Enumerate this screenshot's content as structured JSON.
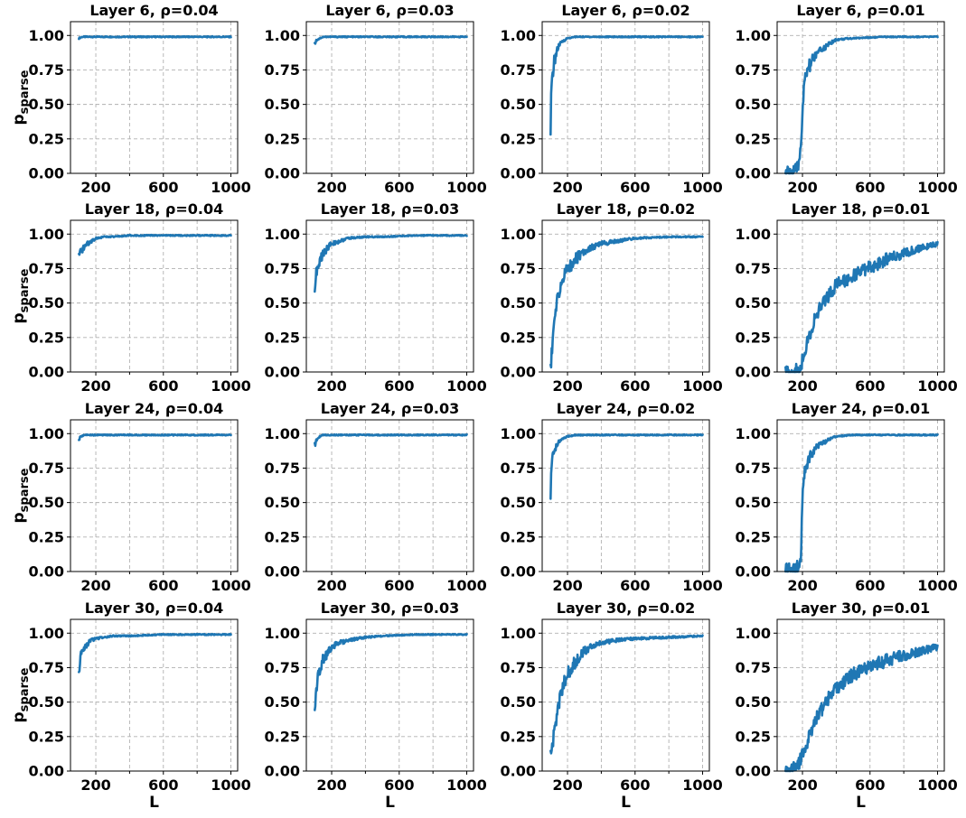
{
  "figure": {
    "x_label": "L",
    "y_label_main": "p",
    "y_label_sub": "sparse"
  },
  "style": {
    "series_color": "#1f77b4",
    "grid": true,
    "grid_style": "dashed",
    "legend": "none"
  },
  "chart_data": [
    {
      "type": "line",
      "title": "Layer 6, ρ=0.04",
      "xlabel": "",
      "ylabel": "p_sparse",
      "xlim": [
        50,
        1040
      ],
      "ylim": [
        0,
        1.1
      ],
      "xticks": [
        200,
        600,
        1000
      ],
      "yticks": [
        "0.00",
        "0.25",
        "0.50",
        "0.75",
        "1.00"
      ],
      "series": [
        {
          "x": [
            100,
            120,
            150,
            200,
            300,
            400,
            600,
            800,
            1000
          ],
          "values": [
            0.98,
            0.99,
            0.99,
            0.99,
            0.99,
            0.99,
            0.99,
            0.99,
            0.99
          ]
        }
      ]
    },
    {
      "type": "line",
      "title": "Layer 6, ρ=0.03",
      "xlabel": "",
      "ylabel": "",
      "xlim": [
        50,
        1040
      ],
      "ylim": [
        0,
        1.1
      ],
      "xticks": [
        200,
        600,
        1000
      ],
      "yticks": [
        "0.00",
        "0.25",
        "0.50",
        "0.75",
        "1.00"
      ],
      "series": [
        {
          "x": [
            100,
            105,
            115,
            130,
            150,
            200,
            300,
            600,
            1000
          ],
          "values": [
            0.93,
            0.96,
            0.97,
            0.98,
            0.99,
            0.99,
            0.99,
            0.99,
            0.99
          ]
        }
      ]
    },
    {
      "type": "line",
      "title": "Layer 6, ρ=0.02",
      "xlabel": "",
      "ylabel": "",
      "xlim": [
        50,
        1040
      ],
      "ylim": [
        0,
        1.1
      ],
      "xticks": [
        200,
        600,
        1000
      ],
      "yticks": [
        "0.00",
        "0.25",
        "0.50",
        "0.75",
        "1.00"
      ],
      "series": [
        {
          "x": [
            100,
            103,
            110,
            120,
            135,
            150,
            175,
            200,
            250,
            300,
            600,
            1000
          ],
          "values": [
            0.25,
            0.55,
            0.7,
            0.8,
            0.88,
            0.93,
            0.96,
            0.98,
            0.99,
            0.99,
            0.99,
            0.99
          ]
        }
      ]
    },
    {
      "type": "line",
      "title": "Layer 6, ρ=0.01",
      "xlabel": "",
      "ylabel": "",
      "xlim": [
        50,
        1040
      ],
      "ylim": [
        0,
        1.1
      ],
      "xticks": [
        200,
        600,
        1000
      ],
      "yticks": [
        "0.00",
        "0.25",
        "0.50",
        "0.75",
        "1.00"
      ],
      "series": [
        {
          "x": [
            100,
            130,
            160,
            175,
            185,
            195,
            205,
            215,
            230,
            250,
            280,
            320,
            360,
            400,
            500,
            700,
            1000
          ],
          "values": [
            0.0,
            0.01,
            0.02,
            0.05,
            0.15,
            0.3,
            0.55,
            0.68,
            0.75,
            0.8,
            0.86,
            0.9,
            0.94,
            0.97,
            0.98,
            0.99,
            0.99
          ]
        }
      ]
    },
    {
      "type": "line",
      "title": "Layer 18, ρ=0.04",
      "xlabel": "",
      "ylabel": "p_sparse",
      "xlim": [
        50,
        1040
      ],
      "ylim": [
        0,
        1.1
      ],
      "xticks": [
        200,
        600,
        1000
      ],
      "yticks": [
        "0.00",
        "0.25",
        "0.50",
        "0.75",
        "1.00"
      ],
      "series": [
        {
          "x": [
            100,
            110,
            125,
            150,
            175,
            200,
            250,
            300,
            400,
            600,
            1000
          ],
          "values": [
            0.83,
            0.86,
            0.9,
            0.93,
            0.95,
            0.97,
            0.98,
            0.98,
            0.99,
            0.99,
            0.99
          ]
        }
      ]
    },
    {
      "type": "line",
      "title": "Layer 18, ρ=0.03",
      "xlabel": "",
      "ylabel": "",
      "xlim": [
        50,
        1040
      ],
      "ylim": [
        0,
        1.1
      ],
      "xticks": [
        200,
        600,
        1000
      ],
      "yticks": [
        "0.00",
        "0.25",
        "0.50",
        "0.75",
        "1.00"
      ],
      "series": [
        {
          "x": [
            100,
            110,
            130,
            150,
            175,
            200,
            250,
            300,
            400,
            500,
            700,
            1000
          ],
          "values": [
            0.62,
            0.72,
            0.8,
            0.86,
            0.9,
            0.93,
            0.95,
            0.97,
            0.98,
            0.98,
            0.99,
            0.99
          ]
        }
      ]
    },
    {
      "type": "line",
      "title": "Layer 18, ρ=0.02",
      "xlabel": "",
      "ylabel": "",
      "xlim": [
        50,
        1040
      ],
      "ylim": [
        0,
        1.1
      ],
      "xticks": [
        200,
        600,
        1000
      ],
      "yticks": [
        "0.00",
        "0.25",
        "0.50",
        "0.75",
        "1.00"
      ],
      "series": [
        {
          "x": [
            100,
            110,
            120,
            140,
            160,
            180,
            200,
            250,
            300,
            400,
            500,
            600,
            800,
            1000
          ],
          "values": [
            0.03,
            0.2,
            0.35,
            0.52,
            0.63,
            0.7,
            0.75,
            0.82,
            0.88,
            0.93,
            0.95,
            0.97,
            0.98,
            0.98
          ]
        }
      ]
    },
    {
      "type": "line",
      "title": "Layer 18, ρ=0.01",
      "xlabel": "",
      "ylabel": "",
      "xlim": [
        50,
        1040
      ],
      "ylim": [
        0,
        1.1
      ],
      "xticks": [
        200,
        600,
        1000
      ],
      "yticks": [
        "0.00",
        "0.25",
        "0.50",
        "0.75",
        "1.00"
      ],
      "series": [
        {
          "x": [
            100,
            150,
            180,
            200,
            220,
            250,
            280,
            320,
            360,
            400,
            500,
            600,
            700,
            800,
            900,
            1000
          ],
          "values": [
            0.0,
            0.0,
            0.02,
            0.08,
            0.18,
            0.3,
            0.4,
            0.5,
            0.57,
            0.63,
            0.7,
            0.76,
            0.82,
            0.86,
            0.9,
            0.93
          ]
        }
      ]
    },
    {
      "type": "line",
      "title": "Layer 24, ρ=0.04",
      "xlabel": "",
      "ylabel": "p_sparse",
      "xlim": [
        50,
        1040
      ],
      "ylim": [
        0,
        1.1
      ],
      "xticks": [
        200,
        600,
        1000
      ],
      "yticks": [
        "0.00",
        "0.25",
        "0.50",
        "0.75",
        "1.00"
      ],
      "series": [
        {
          "x": [
            100,
            105,
            115,
            130,
            200,
            400,
            600,
            1000
          ],
          "values": [
            0.95,
            0.97,
            0.98,
            0.99,
            0.99,
            0.99,
            0.99,
            0.99
          ]
        }
      ]
    },
    {
      "type": "line",
      "title": "Layer 24, ρ=0.03",
      "xlabel": "",
      "ylabel": "",
      "xlim": [
        50,
        1040
      ],
      "ylim": [
        0,
        1.1
      ],
      "xticks": [
        200,
        600,
        1000
      ],
      "yticks": [
        "0.00",
        "0.25",
        "0.50",
        "0.75",
        "1.00"
      ],
      "series": [
        {
          "x": [
            100,
            105,
            115,
            130,
            150,
            200,
            400,
            1000
          ],
          "values": [
            0.91,
            0.94,
            0.96,
            0.98,
            0.99,
            0.99,
            0.99,
            0.99
          ]
        }
      ]
    },
    {
      "type": "line",
      "title": "Layer 24, ρ=0.02",
      "xlabel": "",
      "ylabel": "",
      "xlim": [
        50,
        1040
      ],
      "ylim": [
        0,
        1.1
      ],
      "xticks": [
        200,
        600,
        1000
      ],
      "yticks": [
        "0.00",
        "0.25",
        "0.50",
        "0.75",
        "1.00"
      ],
      "series": [
        {
          "x": [
            100,
            103,
            110,
            125,
            140,
            160,
            180,
            200,
            250,
            300,
            600,
            1000
          ],
          "values": [
            0.52,
            0.7,
            0.8,
            0.88,
            0.93,
            0.95,
            0.97,
            0.98,
            0.99,
            0.99,
            0.99,
            0.99
          ]
        }
      ]
    },
    {
      "type": "line",
      "title": "Layer 24, ρ=0.01",
      "xlabel": "",
      "ylabel": "",
      "xlim": [
        50,
        1040
      ],
      "ylim": [
        0,
        1.1
      ],
      "xticks": [
        200,
        600,
        1000
      ],
      "yticks": [
        "0.00",
        "0.25",
        "0.50",
        "0.75",
        "1.00"
      ],
      "series": [
        {
          "x": [
            100,
            140,
            170,
            185,
            192,
            198,
            205,
            215,
            230,
            250,
            280,
            320,
            360,
            400,
            500,
            700,
            1000
          ],
          "values": [
            0.01,
            0.02,
            0.03,
            0.05,
            0.15,
            0.45,
            0.65,
            0.75,
            0.8,
            0.85,
            0.9,
            0.93,
            0.96,
            0.98,
            0.99,
            0.99,
            0.99
          ]
        }
      ]
    },
    {
      "type": "line",
      "title": "Layer 30, ρ=0.04",
      "xlabel": "L",
      "ylabel": "p_sparse",
      "xlim": [
        50,
        1040
      ],
      "ylim": [
        0,
        1.1
      ],
      "xticks": [
        200,
        600,
        1000
      ],
      "yticks": [
        "0.00",
        "0.25",
        "0.50",
        "0.75",
        "1.00"
      ],
      "series": [
        {
          "x": [
            100,
            110,
            125,
            150,
            175,
            200,
            250,
            300,
            400,
            600,
            1000
          ],
          "values": [
            0.75,
            0.83,
            0.88,
            0.92,
            0.95,
            0.96,
            0.97,
            0.98,
            0.98,
            0.99,
            0.99
          ]
        }
      ]
    },
    {
      "type": "line",
      "title": "Layer 30, ρ=0.03",
      "xlabel": "L",
      "ylabel": "",
      "xlim": [
        50,
        1040
      ],
      "ylim": [
        0,
        1.1
      ],
      "xticks": [
        200,
        600,
        1000
      ],
      "yticks": [
        "0.00",
        "0.25",
        "0.50",
        "0.75",
        "1.00"
      ],
      "series": [
        {
          "x": [
            100,
            110,
            125,
            150,
            175,
            200,
            250,
            300,
            400,
            500,
            700,
            1000
          ],
          "values": [
            0.47,
            0.62,
            0.72,
            0.8,
            0.86,
            0.9,
            0.93,
            0.95,
            0.97,
            0.98,
            0.99,
            0.99
          ]
        }
      ]
    },
    {
      "type": "line",
      "title": "Layer 30, ρ=0.02",
      "xlabel": "L",
      "ylabel": "",
      "xlim": [
        50,
        1040
      ],
      "ylim": [
        0,
        1.1
      ],
      "xticks": [
        200,
        600,
        1000
      ],
      "yticks": [
        "0.00",
        "0.25",
        "0.50",
        "0.75",
        "1.00"
      ],
      "series": [
        {
          "x": [
            100,
            110,
            120,
            140,
            160,
            180,
            200,
            250,
            300,
            350,
            400,
            500,
            600,
            800,
            1000
          ],
          "values": [
            0.1,
            0.18,
            0.28,
            0.42,
            0.55,
            0.64,
            0.7,
            0.8,
            0.87,
            0.91,
            0.93,
            0.95,
            0.96,
            0.97,
            0.98
          ]
        }
      ]
    },
    {
      "type": "line",
      "title": "Layer 30, ρ=0.01",
      "xlabel": "L",
      "ylabel": "",
      "xlim": [
        50,
        1040
      ],
      "ylim": [
        0,
        1.1
      ],
      "xticks": [
        200,
        600,
        1000
      ],
      "yticks": [
        "0.00",
        "0.25",
        "0.50",
        "0.75",
        "1.00"
      ],
      "series": [
        {
          "x": [
            100,
            130,
            160,
            180,
            200,
            230,
            260,
            300,
            350,
            400,
            450,
            500,
            600,
            700,
            800,
            900,
            1000
          ],
          "values": [
            0.0,
            0.01,
            0.03,
            0.06,
            0.12,
            0.22,
            0.32,
            0.42,
            0.52,
            0.6,
            0.65,
            0.7,
            0.76,
            0.8,
            0.84,
            0.87,
            0.9
          ]
        }
      ]
    }
  ]
}
